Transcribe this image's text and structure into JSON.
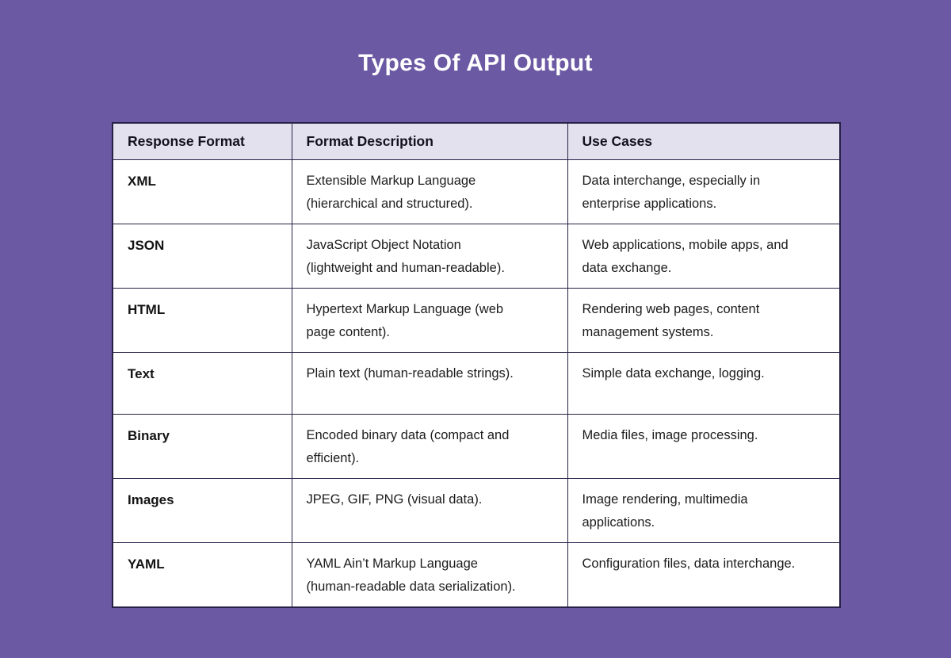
{
  "page": {
    "title": "Types Of API Output"
  },
  "colors": {
    "background": "#6C59A3",
    "title_text": "#FFFFFF",
    "header_bg": "#E4E1EF",
    "cell_bg": "#FFFFFF",
    "border": "#262145",
    "body_text": "#1C1C1E"
  },
  "chart_data": {
    "type": "table",
    "title": "Types Of API Output",
    "columns": [
      "Response Format",
      "Format Description",
      "Use Cases"
    ],
    "rows": [
      [
        "XML",
        "Extensible Markup Language (hierarchical and structured).",
        "Data interchange, especially in enterprise applications."
      ],
      [
        "JSON",
        "JavaScript Object Notation (lightweight and human-readable).",
        "Web applications, mobile apps, and data exchange."
      ],
      [
        "HTML",
        "Hypertext Markup Language (web page content).",
        "Rendering web pages, content management systems."
      ],
      [
        "Text",
        "Plain text (human-readable strings).",
        "Simple data exchange, logging."
      ],
      [
        "Binary",
        "Encoded binary data (compact and efficient).",
        "Media files, image processing."
      ],
      [
        "Images",
        "JPEG, GIF, PNG (visual data).",
        "Image rendering, multimedia applications."
      ],
      [
        "YAML",
        "YAML Ain’t Markup Language (human-readable data serialization).",
        "Configuration files, data interchange."
      ]
    ]
  }
}
